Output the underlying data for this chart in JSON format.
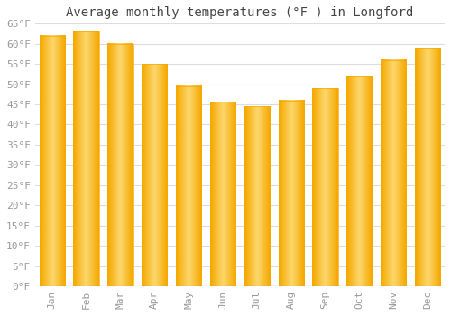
{
  "title": "Average monthly temperatures (°F ) in Longford",
  "months": [
    "Jan",
    "Feb",
    "Mar",
    "Apr",
    "May",
    "Jun",
    "Jul",
    "Aug",
    "Sep",
    "Oct",
    "Nov",
    "Dec"
  ],
  "values": [
    62,
    63,
    60,
    55,
    49.5,
    45.5,
    44.5,
    46,
    49,
    52,
    56,
    59
  ],
  "bar_color_center": "#FDD86E",
  "bar_color_edge": "#F5A800",
  "background_color": "#FFFFFF",
  "plot_bg_color": "#FFFFFF",
  "grid_color": "#DDDDDD",
  "ylim": [
    0,
    65
  ],
  "yticks": [
    0,
    5,
    10,
    15,
    20,
    25,
    30,
    35,
    40,
    45,
    50,
    55,
    60,
    65
  ],
  "ylabel_suffix": "°F",
  "title_fontsize": 10,
  "tick_fontsize": 8,
  "tick_color": "#999999",
  "font_family": "monospace"
}
